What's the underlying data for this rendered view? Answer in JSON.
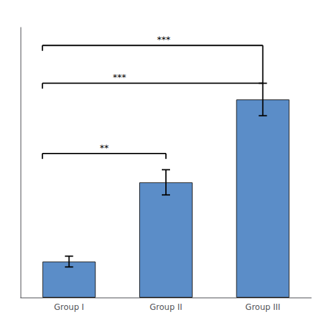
{
  "chart_data": {
    "type": "bar",
    "categories": [
      "Group I",
      "Group II",
      "Group III"
    ],
    "values": [
      1.0,
      3.2,
      5.5
    ],
    "errors": [
      0.15,
      0.35,
      0.45
    ],
    "color": "#5B8DC8",
    "ylim": [
      0,
      7.5
    ],
    "grid": false,
    "tick_labels": "x",
    "annotations": [
      "**",
      "***",
      "***"
    ]
  }
}
